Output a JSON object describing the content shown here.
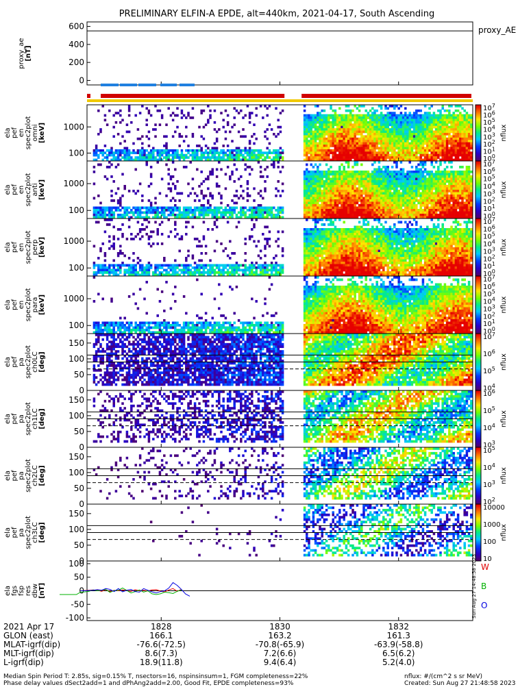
{
  "title": "PRELIMINARY ELFIN-A EPDE, alt=440km, 2021-04-17, South Ascending",
  "proxy_legend": "proxy_AE",
  "colorbar_label": "nflux",
  "chart_data": [
    {
      "type": "line",
      "ylabel": "proxy_ae\n[nT]",
      "ylim": [
        -50,
        650
      ],
      "yticks": [
        "600",
        "400",
        "200",
        "0"
      ],
      "reference_line": 550,
      "series": []
    },
    {
      "type": "heatmap",
      "ylabel": "ela\npef\nen\nspec2plot\nomni\n[keV]",
      "yscale": "log",
      "yticks": [
        "1000",
        "100"
      ],
      "colorbar_ticks": [
        "10^7",
        "10^6",
        "10^5",
        "10^4",
        "10^3",
        "10^2",
        "10^1",
        "10^0"
      ],
      "colorbar_scale": "log"
    },
    {
      "type": "heatmap",
      "ylabel": "ela\npef\nen\nspec2plot\nanti\n[keV]",
      "yscale": "log",
      "yticks": [
        "1000",
        "100"
      ],
      "colorbar_ticks": [
        "10^7",
        "10^6",
        "10^5",
        "10^4",
        "10^3",
        "10^2",
        "10^1",
        "10^0"
      ],
      "colorbar_scale": "log"
    },
    {
      "type": "heatmap",
      "ylabel": "ela\npef\nen\nspec2plot\nperp\n[keV]",
      "yscale": "log",
      "yticks": [
        "1000",
        "100"
      ],
      "colorbar_ticks": [
        "10^7",
        "10^6",
        "10^5",
        "10^4",
        "10^3",
        "10^2",
        "10^1",
        "10^0"
      ],
      "colorbar_scale": "log"
    },
    {
      "type": "heatmap",
      "ylabel": "ela\npef\nen\nspec2plot\npara\n[keV]",
      "yscale": "log",
      "yticks": [
        "1000",
        "100"
      ],
      "colorbar_ticks": [
        "10^7",
        "10^6",
        "10^5",
        "10^4",
        "10^3",
        "10^2",
        "10^1",
        "10^0"
      ],
      "colorbar_scale": "log"
    },
    {
      "type": "heatmap",
      "ylabel": "ela\npef\npa\nspec2plot\nch0LC\n[deg]",
      "ylim": [
        0,
        180
      ],
      "yticks": [
        "150",
        "100",
        "50",
        "0"
      ],
      "colorbar_ticks": [
        "10^7",
        "10^6",
        "10^5",
        "10^4"
      ],
      "colorbar_scale": "log"
    },
    {
      "type": "heatmap",
      "ylabel": "ela\npef\npa\nspec2plot\nch1LC\n[deg]",
      "ylim": [
        0,
        180
      ],
      "yticks": [
        "150",
        "100",
        "50",
        "0"
      ],
      "colorbar_ticks": [
        "10^6",
        "10^5",
        "10^4",
        "10^3"
      ],
      "colorbar_scale": "log"
    },
    {
      "type": "heatmap",
      "ylabel": "ela\npef\npa\nspec2plot\nch2LC\n[deg]",
      "ylim": [
        0,
        180
      ],
      "yticks": [
        "150",
        "100",
        "50",
        "0"
      ],
      "colorbar_ticks": [
        "10^5",
        "10^4",
        "10^3",
        "10^2"
      ],
      "colorbar_scale": "log"
    },
    {
      "type": "heatmap",
      "ylabel": "ela\npef\npa\nspec2plot\nch3LC\n[deg]",
      "ylim": [
        0,
        180
      ],
      "yticks": [
        "150",
        "100",
        "50",
        "0"
      ],
      "colorbar_ticks": [
        "10000",
        "1000",
        "100",
        "10"
      ],
      "colorbar_scale": "log"
    },
    {
      "type": "line",
      "ylabel": "ela\nfgs\nfsp\nres\ndbw\n[nT]",
      "ylim": [
        -110,
        110
      ],
      "yticks": [
        "100",
        "50",
        "0",
        "-50",
        "-100"
      ],
      "legend": [
        "W",
        "B",
        "O"
      ],
      "series": [
        {
          "name": "W",
          "color": "#e00000",
          "x": [
            1825.5,
            1825.6,
            1825.7,
            1825.8,
            1825.9,
            1826.0,
            1826.1,
            1826.2,
            1826.3,
            1826.4,
            1826.5,
            1826.6,
            1826.7,
            1826.8,
            1826.9,
            1827.0,
            1827.1,
            1827.2,
            1827.3,
            1827.4,
            1827.5,
            1827.6,
            1827.7,
            1827.8,
            1827.9
          ],
          "y": [
            0,
            1,
            2,
            3,
            2,
            -2,
            4,
            -3,
            2,
            0,
            3,
            1,
            -2,
            4,
            0,
            2,
            -1,
            3,
            4,
            -1,
            -4,
            3,
            8,
            -2,
            5
          ]
        },
        {
          "name": "B",
          "color": "#00b000",
          "x": [
            1825.0,
            1825.2,
            1825.4,
            1825.5,
            1825.6,
            1825.7,
            1825.8,
            1825.9,
            1826.0,
            1826.1,
            1826.2,
            1826.3,
            1826.4,
            1826.5,
            1826.6,
            1826.7,
            1826.8,
            1826.9,
            1827.0,
            1827.1,
            1827.2,
            1827.3,
            1827.4,
            1827.5,
            1827.6,
            1827.7,
            1827.8,
            1827.9
          ],
          "y": [
            -14,
            -14,
            -14,
            -5,
            -4,
            -2,
            3,
            0,
            2,
            5,
            -6,
            1,
            2,
            10,
            1,
            -8,
            -3,
            3,
            -5,
            0,
            -11,
            -14,
            -11,
            -5,
            -7,
            -10,
            -2,
            3
          ]
        },
        {
          "name": "O",
          "color": "#0000e0",
          "x": [
            1825.5,
            1825.6,
            1825.7,
            1825.8,
            1825.9,
            1826.0,
            1826.1,
            1826.2,
            1826.3,
            1826.4,
            1826.5,
            1826.6,
            1826.7,
            1826.8,
            1826.9,
            1827.0,
            1827.1,
            1827.2,
            1827.3,
            1827.4,
            1827.5,
            1827.6,
            1827.7,
            1827.8,
            1827.9,
            1828.0,
            1828.1
          ],
          "y": [
            0,
            0,
            1,
            2,
            4,
            2,
            8,
            5,
            -3,
            8,
            -4,
            2,
            5,
            -3,
            -5,
            8,
            2,
            -4,
            -8,
            -3,
            0,
            10,
            30,
            20,
            5,
            -12,
            -20
          ]
        }
      ]
    }
  ],
  "xaxis": {
    "ticks": [
      "1828",
      "1830",
      "1832"
    ],
    "rows": [
      {
        "label": "2021 Apr 17",
        "values": [
          "",
          "",
          ""
        ]
      },
      {
        "label": "GLON (east)",
        "values": [
          "166.1",
          "163.2",
          "161.3"
        ]
      },
      {
        "label": "MLAT-igrf(dip)",
        "values": [
          "-76.6(-72.5)",
          "-70.8(-65.9)",
          "-63.9(-58.8)"
        ]
      },
      {
        "label": "MLT-igrf(dip)",
        "values": [
          "8.6(7.3)",
          "7.2(6.6)",
          "6.5(6.2)"
        ]
      },
      {
        "label": "L-igrf(dip)",
        "values": [
          "18.9(11.8)",
          "9.4(6.4)",
          "5.2(4.0)"
        ]
      }
    ]
  },
  "footer": {
    "line1": "Median Spin Period T: 2.85s, sig=0.15% T, nsectors=16, nspinsinsum=1, FGM completeness=22%",
    "line2": "Phase delay values dSect2add=1 and dPhAng2add=2.00, Good Fit, EPDE completeness=93%",
    "units": "nflux: #/(cm^2 s sr MeV)",
    "created": "Created: Sun Aug 27 21:48:58 2023",
    "side_stamp": "Sun Aug 27 14:48:58 2023"
  }
}
